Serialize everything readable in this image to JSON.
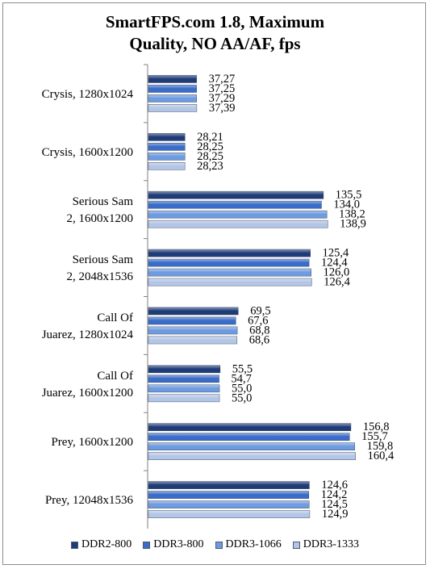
{
  "chart_data": {
    "type": "bar",
    "orientation": "horizontal",
    "title": [
      "SmartFPS.com 1.8, Maximum",
      "Quality, NO AA/AF, fps"
    ],
    "categories": [
      [
        "Crysis, 1280x1024"
      ],
      [
        "Crysis, 1600x1200"
      ],
      [
        "Serious Sam",
        "2, 1600x1200"
      ],
      [
        "Serious Sam",
        "2, 2048x1536"
      ],
      [
        "Call Of",
        "Juarez, 1280x1024"
      ],
      [
        "Call Of",
        "Juarez, 1600x1200"
      ],
      [
        "Prey, 1600x1200"
      ],
      [
        "Prey, 12048x1536"
      ]
    ],
    "series": [
      {
        "name": "DDR2-800",
        "color": "#1f3c78",
        "values": [
          37.27,
          28.21,
          135.5,
          125.4,
          69.5,
          55.5,
          156.8,
          124.6
        ],
        "labels": [
          "37,27",
          "28,21",
          "135,5",
          "125,4",
          "69,5",
          "55,5",
          "156,8",
          "124,6"
        ]
      },
      {
        "name": "DDR3-800",
        "color": "#3a6cc8",
        "values": [
          37.25,
          28.25,
          134.0,
          124.4,
          67.6,
          54.7,
          155.7,
          124.2
        ],
        "labels": [
          "37,25",
          "28,25",
          "134,0",
          "124,4",
          "67,6",
          "54,7",
          "155,7",
          "124,2"
        ]
      },
      {
        "name": "DDR3-1066",
        "color": "#6e9be0",
        "values": [
          37.29,
          28.25,
          138.2,
          126.0,
          68.8,
          55.0,
          159.8,
          124.5
        ],
        "labels": [
          "37,29",
          "28,25",
          "138,2",
          "126,0",
          "68,8",
          "55,0",
          "159,8",
          "124,5"
        ]
      },
      {
        "name": "DDR3-1333",
        "color": "#b4c6e6",
        "values": [
          37.39,
          28.23,
          138.9,
          126.4,
          68.6,
          55.0,
          160.4,
          124.9
        ],
        "labels": [
          "37,39",
          "28,23",
          "138,9",
          "126,4",
          "68,6",
          "55,0",
          "160,4",
          "124,9"
        ]
      }
    ],
    "xlim": [
      0,
      200
    ],
    "grid": false,
    "legend_position": "bottom"
  }
}
